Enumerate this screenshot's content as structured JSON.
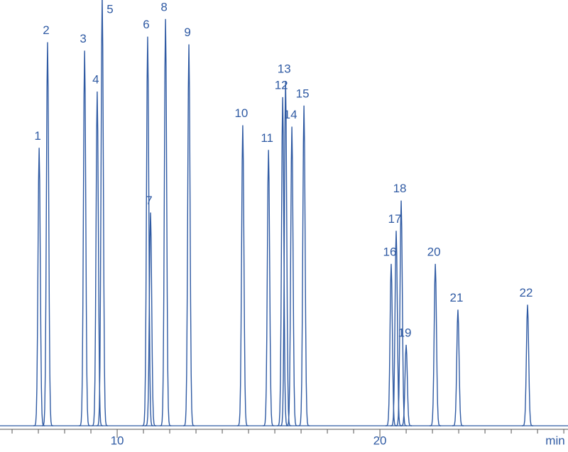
{
  "chart_data": {
    "type": "peaks",
    "x": [
      7.03,
      7.35,
      8.76,
      9.24,
      9.43,
      11.16,
      11.27,
      11.84,
      12.73,
      14.78,
      15.76,
      16.3,
      16.41,
      16.65,
      17.11,
      20.43,
      20.62,
      20.81,
      21.0,
      22.11,
      22.97,
      25.62
    ],
    "values": [
      395,
      545,
      533,
      475,
      610,
      553,
      303,
      578,
      542,
      427,
      392,
      467,
      490,
      425,
      455,
      230,
      277,
      320,
      115,
      230,
      165,
      172
    ],
    "peak_labels": [
      "1",
      "2",
      "3",
      "4",
      "5",
      "6",
      "7",
      "8",
      "9",
      "10",
      "11",
      "12",
      "13",
      "14",
      "15",
      "16",
      "17",
      "18",
      "19",
      "20",
      "21",
      "22"
    ],
    "x_label": "min",
    "xlim": [
      5.54,
      27.16
    ],
    "xticks": [
      10,
      20
    ],
    "xminorticks": [
      6,
      7,
      8,
      9,
      11,
      12,
      13,
      14,
      15,
      16,
      17,
      18,
      19,
      21,
      22,
      23,
      24,
      25,
      26,
      27
    ],
    "ylim": [
      0,
      600
    ],
    "color": "#2f5aa3"
  }
}
